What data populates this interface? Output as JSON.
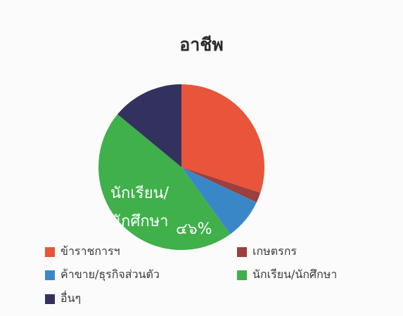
{
  "chart_data": {
    "type": "pie",
    "title": "อาชีพ",
    "slices": [
      {
        "label": "ข้าราชการฯ",
        "value": 30,
        "color": "#e8553a"
      },
      {
        "label": "เกษตรกร",
        "value": 2,
        "color": "#9b3f3f"
      },
      {
        "label": "ค้าขาย/ธุรกิจส่วนตัว",
        "value": 8,
        "color": "#3a87c8"
      },
      {
        "label": "นักเรียน/นักศึกษา",
        "value": 46,
        "color": "#3fb04a"
      },
      {
        "label": "อื่นๆ",
        "value": 14,
        "color": "#33325f"
      }
    ],
    "data_label": {
      "slice": "นักเรียน/นักศึกษา",
      "line1": "นักเรียน/",
      "line2": "นักศึกษา",
      "value_text": "๔๖%"
    },
    "legend_position": "bottom"
  }
}
